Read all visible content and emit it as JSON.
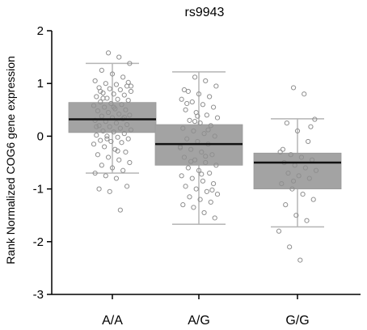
{
  "chart_data": {
    "type": "box",
    "title": "rs9943",
    "ylabel": "Rank Normalized  COG6 gene expression",
    "xlabel": "",
    "categories": [
      "A/A",
      "A/G",
      "G/G"
    ],
    "ylim": [
      -3,
      2
    ],
    "yticks": [
      2,
      1,
      0,
      -1,
      -2,
      -3
    ],
    "grid": false,
    "legend": "none",
    "colors": {
      "box": "#a3a3a3",
      "whisker": "#b5b5b5",
      "median": "#111111",
      "point": "#8f8f8f"
    },
    "boxes": [
      {
        "category": "A/A",
        "q1": 0.07,
        "median": 0.32,
        "q3": 0.64,
        "whisker_low": -0.7,
        "whisker_high": 1.38
      },
      {
        "category": "A/G",
        "q1": -0.55,
        "median": -0.15,
        "q3": 0.22,
        "whisker_low": -1.67,
        "whisker_high": 1.22
      },
      {
        "category": "G/G",
        "q1": -1.0,
        "median": -0.5,
        "q3": -0.32,
        "whisker_low": -1.72,
        "whisker_high": 0.33
      }
    ],
    "points": [
      {
        "category": "A/A",
        "values": [
          1.58,
          1.5,
          1.38,
          1.25,
          1.18,
          1.12,
          1.05,
          1.0,
          0.98,
          0.95,
          0.92,
          0.9,
          0.88,
          0.85,
          0.82,
          0.8,
          0.78,
          0.75,
          0.72,
          0.7,
          0.68,
          0.65,
          0.62,
          0.6,
          0.58,
          0.55,
          0.52,
          0.5,
          0.48,
          0.45,
          0.42,
          0.4,
          0.38,
          0.35,
          0.33,
          0.3,
          0.28,
          0.25,
          0.22,
          0.2,
          0.18,
          0.15,
          0.12,
          0.1,
          0.08,
          0.05,
          0.02,
          0.0,
          -0.02,
          -0.05,
          -0.08,
          -0.1,
          -0.12,
          -0.15,
          -0.2,
          -0.25,
          -0.3,
          -0.35,
          -0.4,
          -0.45,
          -0.5,
          -0.55,
          -0.6,
          -0.65,
          -0.7,
          -0.75,
          -0.8,
          -0.95,
          -1.0,
          -1.05,
          -1.4,
          0.95,
          0.72,
          0.55,
          0.36,
          0.18,
          -0.05,
          -0.28,
          1.02,
          0.85
        ]
      },
      {
        "category": "A/G",
        "values": [
          1.12,
          1.05,
          0.95,
          0.85,
          0.8,
          0.75,
          0.7,
          0.65,
          0.6,
          0.55,
          0.5,
          0.45,
          0.4,
          0.35,
          0.3,
          0.25,
          0.2,
          0.15,
          0.1,
          0.05,
          0.0,
          -0.05,
          -0.1,
          -0.15,
          -0.2,
          -0.25,
          -0.3,
          -0.35,
          -0.4,
          -0.45,
          -0.5,
          -0.55,
          -0.6,
          -0.65,
          -0.7,
          -0.75,
          -0.8,
          -0.85,
          -0.9,
          -0.95,
          -1.0,
          -1.05,
          -1.1,
          -1.15,
          -1.2,
          -1.25,
          -1.3,
          -1.35,
          -1.45,
          -1.55,
          0.62,
          0.38,
          0.12,
          -0.22,
          -0.48,
          -0.72,
          -1.02,
          0.88,
          0.28,
          -0.38
        ]
      },
      {
        "category": "G/G",
        "values": [
          0.92,
          0.8,
          0.32,
          0.25,
          0.1,
          -0.1,
          -0.3,
          -0.35,
          -0.4,
          -0.45,
          -0.5,
          -0.55,
          -0.6,
          -0.65,
          -0.7,
          -0.75,
          -0.8,
          -0.9,
          -1.0,
          -1.1,
          -1.2,
          -1.3,
          -1.5,
          -1.6,
          -1.8,
          -2.1,
          -2.35,
          0.18,
          -0.25,
          -0.85
        ]
      }
    ]
  }
}
